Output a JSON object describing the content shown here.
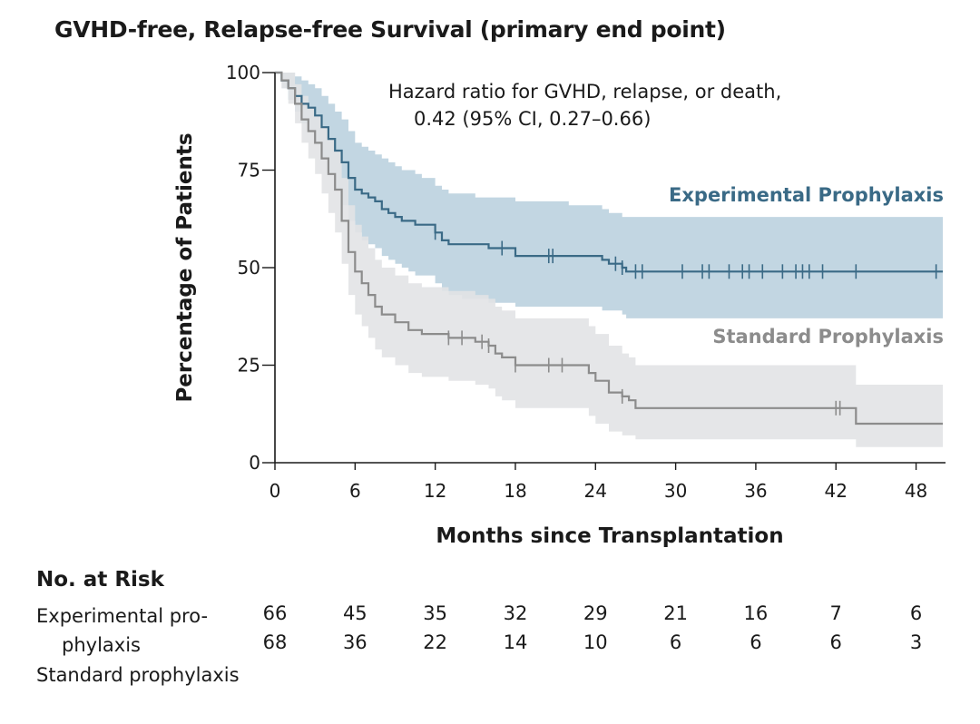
{
  "title": "GVHD-free, Relapse-free Survival (primary end point)",
  "chart_data": {
    "type": "line",
    "xlabel": "Months since Transplantation",
    "ylabel": "Percentage of Patients",
    "xlim": [
      0,
      50
    ],
    "ylim": [
      0,
      100
    ],
    "xticks": [
      "0",
      "6",
      "12",
      "18",
      "24",
      "30",
      "36",
      "42",
      "48"
    ],
    "yticks": [
      "0",
      "25",
      "50",
      "75",
      "100"
    ],
    "annotation_line1": "Hazard ratio for GVHD, relapse, or death,",
    "annotation_line2": "0.42 (95% CI, 0.27–0.66)",
    "grid": false,
    "series": [
      {
        "name": "Experimental Prophylaxis",
        "color": "#3a6a86",
        "band_color": "#b7cfdd",
        "x": [
          0,
          0.5,
          1,
          1.5,
          2,
          2.5,
          3,
          3.5,
          4,
          4.5,
          5,
          5.5,
          6,
          6.5,
          7,
          7.5,
          8,
          8.5,
          9,
          9.5,
          10,
          10.5,
          11,
          12,
          12.5,
          13,
          14,
          15,
          16,
          17,
          18,
          20,
          22,
          24,
          24.5,
          25,
          26,
          26.3,
          26.7,
          27,
          30,
          36,
          40,
          45,
          50
        ],
        "y": [
          100,
          98,
          96,
          94,
          92,
          91,
          89,
          86,
          83,
          80,
          77,
          73,
          70,
          69,
          68,
          67,
          65,
          64,
          63,
          62,
          62,
          61,
          61,
          59,
          57,
          56,
          56,
          56,
          55,
          55,
          53,
          53,
          53,
          53,
          52,
          51,
          50,
          49,
          49,
          49,
          49,
          49,
          49,
          49,
          49
        ],
        "lower": [
          100,
          96,
          93,
          90,
          87,
          85,
          82,
          78,
          74,
          70,
          66,
          62,
          59,
          57,
          56,
          55,
          53,
          52,
          51,
          50,
          49,
          48,
          48,
          46,
          44,
          43,
          42,
          42,
          41,
          41,
          40,
          40,
          40,
          40,
          39,
          39,
          38,
          37,
          37,
          37,
          37,
          37,
          37,
          37,
          37
        ],
        "upper": [
          100,
          100,
          100,
          99,
          98,
          97,
          96,
          94,
          92,
          90,
          88,
          85,
          82,
          81,
          80,
          79,
          78,
          77,
          76,
          75,
          75,
          74,
          73,
          71,
          70,
          69,
          69,
          68,
          68,
          68,
          67,
          67,
          66,
          66,
          65,
          64,
          63,
          63,
          63,
          63,
          63,
          63,
          63,
          63,
          63
        ],
        "censor_x": [
          12,
          17,
          20.5,
          20.8,
          25.5,
          26,
          27,
          27.5,
          30.5,
          32,
          32.5,
          34,
          35,
          35.5,
          36.5,
          38,
          39,
          39.5,
          40,
          41,
          43.5,
          49.5
        ]
      },
      {
        "name": "Standard Prophylaxis",
        "color": "#8c8c8c",
        "band_color": "#e2e3e5",
        "x": [
          0,
          0.5,
          1,
          1.5,
          2,
          2.5,
          3,
          3.5,
          4,
          4.5,
          5,
          5.5,
          6,
          6.5,
          7,
          7.5,
          8,
          9,
          10,
          11,
          12,
          13,
          15,
          16,
          16.5,
          17,
          18,
          20,
          23,
          23.5,
          24,
          25,
          26,
          26.5,
          27,
          30,
          35,
          40,
          43,
          43.5,
          50
        ],
        "y": [
          100,
          98,
          96,
          92,
          88,
          85,
          82,
          78,
          74,
          70,
          62,
          54,
          49,
          46,
          43,
          40,
          38,
          36,
          34,
          33,
          33,
          32,
          31,
          30,
          28,
          27,
          25,
          25,
          25,
          23,
          21,
          18,
          17,
          16,
          14,
          14,
          14,
          14,
          14,
          10,
          10
        ],
        "lower": [
          100,
          96,
          92,
          87,
          82,
          78,
          74,
          69,
          64,
          59,
          51,
          43,
          38,
          35,
          32,
          29,
          27,
          25,
          23,
          22,
          22,
          21,
          20,
          19,
          17,
          16,
          14,
          14,
          14,
          12,
          10,
          8,
          7,
          7,
          6,
          6,
          6,
          6,
          6,
          4,
          4
        ],
        "upper": [
          100,
          100,
          100,
          97,
          94,
          91,
          89,
          86,
          83,
          80,
          73,
          66,
          61,
          58,
          55,
          52,
          50,
          48,
          46,
          45,
          45,
          44,
          43,
          42,
          40,
          39,
          37,
          37,
          37,
          35,
          33,
          30,
          28,
          27,
          25,
          25,
          25,
          25,
          25,
          20,
          20
        ],
        "censor_x": [
          13,
          14,
          15.5,
          16,
          18,
          20.5,
          21.5,
          26,
          42,
          42.3
        ]
      }
    ]
  },
  "risk_table": {
    "title": "No. at Risk",
    "rows": [
      {
        "label_line1": "Experimental pro-",
        "label_line2": "phylaxis",
        "values": [
          "66",
          "45",
          "35",
          "32",
          "29",
          "21",
          "16",
          "7",
          "6"
        ]
      },
      {
        "label_line1": "Standard prophylaxis",
        "values": [
          "68",
          "36",
          "22",
          "14",
          "10",
          "6",
          "6",
          "6",
          "3"
        ]
      }
    ]
  }
}
